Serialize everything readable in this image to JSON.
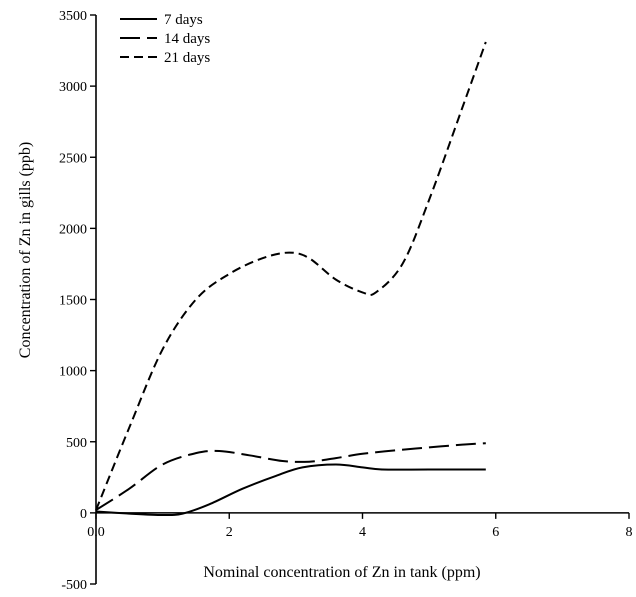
{
  "chart_data": {
    "type": "line",
    "xlabel": "Nominal concentration of Zn in tank (ppm)",
    "ylabel": "Concentration of Zn in gills (ppb)",
    "xlim": [
      0,
      8
    ],
    "ylim": [
      -500,
      3500
    ],
    "x_ticks": [
      0,
      2,
      4,
      6,
      8
    ],
    "x_tick_labels": [
      "0.0",
      "2",
      "4",
      "6",
      "8"
    ],
    "y_ticks": [
      -500,
      0,
      500,
      1000,
      1500,
      2000,
      2500,
      3000,
      3500
    ],
    "y_tick_labels": [
      "-500",
      "0",
      "500",
      "1000",
      "1500",
      "2000",
      "2500",
      "3000",
      "3500"
    ],
    "grid": false,
    "legend_position": "top-left",
    "series": [
      {
        "name": "7 days",
        "style": "solid",
        "x": [
          0,
          0.5,
          1.0,
          1.3,
          1.7,
          2.2,
          2.7,
          3.1,
          3.6,
          4.0,
          4.3,
          5.0,
          5.85
        ],
        "y": [
          10,
          -5,
          -15,
          -5,
          60,
          170,
          260,
          320,
          340,
          320,
          305,
          305,
          305
        ]
      },
      {
        "name": "14 days",
        "style": "long-dash",
        "x": [
          0,
          0.5,
          1.0,
          1.5,
          1.85,
          2.3,
          2.8,
          3.2,
          3.6,
          4.0,
          4.5,
          5.0,
          5.5,
          5.85
        ],
        "y": [
          20,
          170,
          340,
          420,
          435,
          405,
          365,
          360,
          385,
          415,
          440,
          460,
          480,
          490
        ]
      },
      {
        "name": "21 days",
        "style": "short-dash",
        "x": [
          0,
          0.5,
          1.0,
          1.5,
          2.0,
          2.5,
          2.9,
          3.2,
          3.6,
          4.0,
          4.2,
          4.6,
          5.0,
          5.5,
          5.85
        ],
        "y": [
          20,
          600,
          1150,
          1500,
          1680,
          1790,
          1830,
          1790,
          1640,
          1550,
          1550,
          1750,
          2200,
          2850,
          3310
        ]
      }
    ]
  }
}
